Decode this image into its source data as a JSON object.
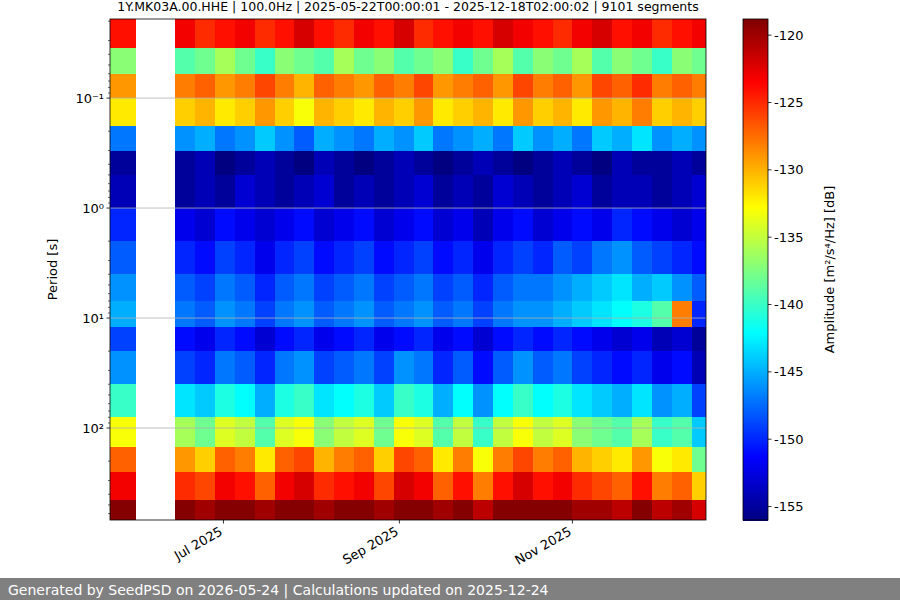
{
  "chart_data": {
    "type": "heatmap",
    "title": "1Y.MK03A.00.HHE | 100.0Hz | 2025-05-22T00:00:01 - 2025-12-18T02:00:02 | 9101 segments",
    "footer": "Generated by SeedPSD on 2026-05-24 | Calculations updated on 2025-12-24",
    "y_label": "Period [s]",
    "colorbar_label": "Amplitude [m²/s⁴/Hz] [dB]",
    "log": "y",
    "grid": true,
    "xlim": [
      "2025-05-22T00:00:01",
      "2025-12-18T02:00:02"
    ],
    "xticks": [
      {
        "value": "2025-07-01",
        "label": "Jul 2025"
      },
      {
        "value": "2025-09-01",
        "label": "Sep 2025"
      },
      {
        "value": "2025-11-01",
        "label": "Nov 2025"
      }
    ],
    "ylim": [
      0.0191,
      686
    ],
    "yticks": [
      {
        "value": 0.1,
        "label": "10⁻¹"
      },
      {
        "value": 1,
        "label": "10⁰"
      },
      {
        "value": 10,
        "label": "10¹"
      },
      {
        "value": 100,
        "label": "10²"
      }
    ],
    "clim": [
      -156,
      -118.8
    ],
    "cticks": [
      -155,
      -150,
      -145,
      -140,
      -135,
      -130,
      -125,
      -120
    ],
    "x": [
      "2025-05-22T00:00:01",
      "2025-05-31",
      "2025-06-14",
      "2025-06-21",
      "2025-06-28",
      "2025-07-05",
      "2025-07-12",
      "2025-07-19",
      "2025-07-26",
      "2025-08-02",
      "2025-08-09",
      "2025-08-16",
      "2025-08-23",
      "2025-08-30",
      "2025-09-06",
      "2025-09-13",
      "2025-09-20",
      "2025-09-27",
      "2025-10-04",
      "2025-10-11",
      "2025-10-18",
      "2025-10-25",
      "2025-11-01",
      "2025-11-08",
      "2025-11-15",
      "2025-11-22",
      "2025-11-29",
      "2025-12-06",
      "2025-12-13",
      "2025-12-18T02:00:02"
    ],
    "y": [
      0.019,
      0.035,
      0.06,
      0.1,
      0.18,
      0.3,
      0.5,
      1,
      2,
      4,
      7,
      12,
      20,
      40,
      80,
      150,
      250,
      450,
      686
    ],
    "values": [
      [
        -124,
        null,
        -123,
        -125,
        -124,
        -123,
        -125,
        -124,
        -122,
        -124,
        -125,
        -123,
        -124,
        -122,
        -125,
        -124,
        -123,
        -124,
        -122,
        -123,
        -124,
        -125,
        -123,
        -122,
        -124,
        -123,
        -125,
        -124,
        -123
      ],
      [
        -137,
        null,
        -139,
        -138,
        -136,
        -138,
        -140,
        -137,
        -138,
        -139,
        -136,
        -138,
        -137,
        -139,
        -138,
        -137,
        -140,
        -138,
        -136,
        -139,
        -137,
        -138,
        -136,
        -139,
        -137,
        -138,
        -140,
        -137,
        -138
      ],
      [
        -129,
        null,
        -128,
        -127,
        -129,
        -128,
        -126,
        -128,
        -130,
        -127,
        -128,
        -129,
        -127,
        -128,
        -126,
        -129,
        -128,
        -127,
        -129,
        -126,
        -128,
        -127,
        -129,
        -126,
        -127,
        -125,
        -128,
        -127,
        -128
      ],
      [
        -132,
        null,
        -131,
        -130,
        -132,
        -131,
        -129,
        -131,
        -133,
        -130,
        -131,
        -132,
        -130,
        -131,
        -129,
        -132,
        -131,
        -130,
        -132,
        -129,
        -131,
        -130,
        -132,
        -129,
        -130,
        -128,
        -131,
        -130,
        -131
      ],
      [
        -147,
        null,
        -146,
        -145,
        -147,
        -146,
        -144,
        -146,
        -148,
        -145,
        -146,
        -147,
        -145,
        -146,
        -144,
        -147,
        -146,
        -145,
        -147,
        -144,
        -146,
        -145,
        -147,
        -144,
        -145,
        -143,
        -146,
        -145,
        -146
      ],
      [
        -155,
        null,
        -155,
        -154,
        -156,
        -155,
        -154,
        -155,
        -156,
        -154,
        -155,
        -156,
        -155,
        -154,
        -155,
        -156,
        -155,
        -154,
        -155,
        -156,
        -155,
        -154,
        -155,
        -156,
        -154,
        -155,
        -155,
        -154,
        -155
      ],
      [
        -154,
        null,
        -155,
        -154,
        -155,
        -153,
        -154,
        -155,
        -154,
        -153,
        -155,
        -154,
        -155,
        -154,
        -153,
        -155,
        -154,
        -155,
        -153,
        -154,
        -155,
        -154,
        -153,
        -155,
        -154,
        -154,
        -155,
        -154,
        -153
      ],
      [
        -150,
        null,
        -152,
        -153,
        -151,
        -152,
        -153,
        -152,
        -151,
        -153,
        -152,
        -151,
        -153,
        -152,
        -151,
        -153,
        -152,
        -154,
        -152,
        -151,
        -153,
        -152,
        -151,
        -152,
        -150,
        -151,
        -152,
        -153,
        -152
      ],
      [
        -148,
        null,
        -150,
        -151,
        -149,
        -150,
        -152,
        -150,
        -149,
        -151,
        -150,
        -149,
        -151,
        -150,
        -149,
        -151,
        -150,
        -152,
        -150,
        -149,
        -150,
        -148,
        -149,
        -147,
        -146,
        -148,
        -149,
        -150,
        -151
      ],
      [
        -146,
        null,
        -148,
        -149,
        -147,
        -148,
        -150,
        -148,
        -147,
        -149,
        -148,
        -147,
        -149,
        -148,
        -147,
        -149,
        -148,
        -150,
        -148,
        -147,
        -147,
        -146,
        -145,
        -144,
        -143,
        -145,
        -144,
        -146,
        -148
      ],
      [
        -145,
        null,
        -147,
        -148,
        -146,
        -147,
        -149,
        -147,
        -146,
        -148,
        -147,
        -146,
        -148,
        -147,
        -146,
        -148,
        -147,
        -149,
        -147,
        -146,
        -146,
        -145,
        -144,
        -143,
        -142,
        -141,
        -139,
        -128,
        -150
      ],
      [
        -149,
        null,
        -151,
        -152,
        -150,
        -151,
        -153,
        -151,
        -150,
        -152,
        -151,
        -150,
        -152,
        -151,
        -150,
        -152,
        -151,
        -153,
        -151,
        -150,
        -151,
        -150,
        -151,
        -152,
        -153,
        -152,
        -154,
        -153,
        -155
      ],
      [
        -146,
        null,
        -149,
        -150,
        -147,
        -148,
        -150,
        -147,
        -146,
        -149,
        -148,
        -147,
        -149,
        -146,
        -147,
        -150,
        -148,
        -151,
        -148,
        -146,
        -148,
        -147,
        -149,
        -150,
        -151,
        -150,
        -152,
        -151,
        -154
      ],
      [
        -140,
        null,
        -143,
        -144,
        -141,
        -142,
        -145,
        -141,
        -140,
        -143,
        -142,
        -141,
        -144,
        -140,
        -141,
        -145,
        -142,
        -146,
        -142,
        -140,
        -142,
        -141,
        -143,
        -144,
        -145,
        -143,
        -146,
        -145,
        -149
      ],
      [
        -133,
        null,
        -136,
        -138,
        -134,
        -135,
        -139,
        -134,
        -133,
        -137,
        -135,
        -134,
        -138,
        -133,
        -134,
        -139,
        -135,
        -140,
        -135,
        -133,
        -135,
        -134,
        -137,
        -138,
        -139,
        -136,
        -140,
        -139,
        -144
      ],
      [
        -127,
        null,
        -129,
        -131,
        -127,
        -128,
        -132,
        -127,
        -126,
        -130,
        -128,
        -127,
        -131,
        -126,
        -127,
        -132,
        -128,
        -133,
        -128,
        -126,
        -128,
        -127,
        -130,
        -131,
        -132,
        -129,
        -133,
        -132,
        -138
      ],
      [
        -123,
        null,
        -125,
        -126,
        -123,
        -124,
        -127,
        -123,
        -122,
        -125,
        -124,
        -123,
        -126,
        -122,
        -123,
        -127,
        -124,
        -128,
        -124,
        -122,
        -124,
        -123,
        -125,
        -126,
        -127,
        -124,
        -128,
        -127,
        -131
      ],
      [
        -119,
        null,
        -119,
        -120,
        -119,
        -119,
        -120,
        -119,
        -119,
        -120,
        -119,
        -119,
        -120,
        -119,
        -119,
        -120,
        -119,
        -121,
        -119,
        -119,
        -119,
        -119,
        -120,
        -120,
        -121,
        -119,
        -121,
        -120,
        -122
      ]
    ]
  }
}
